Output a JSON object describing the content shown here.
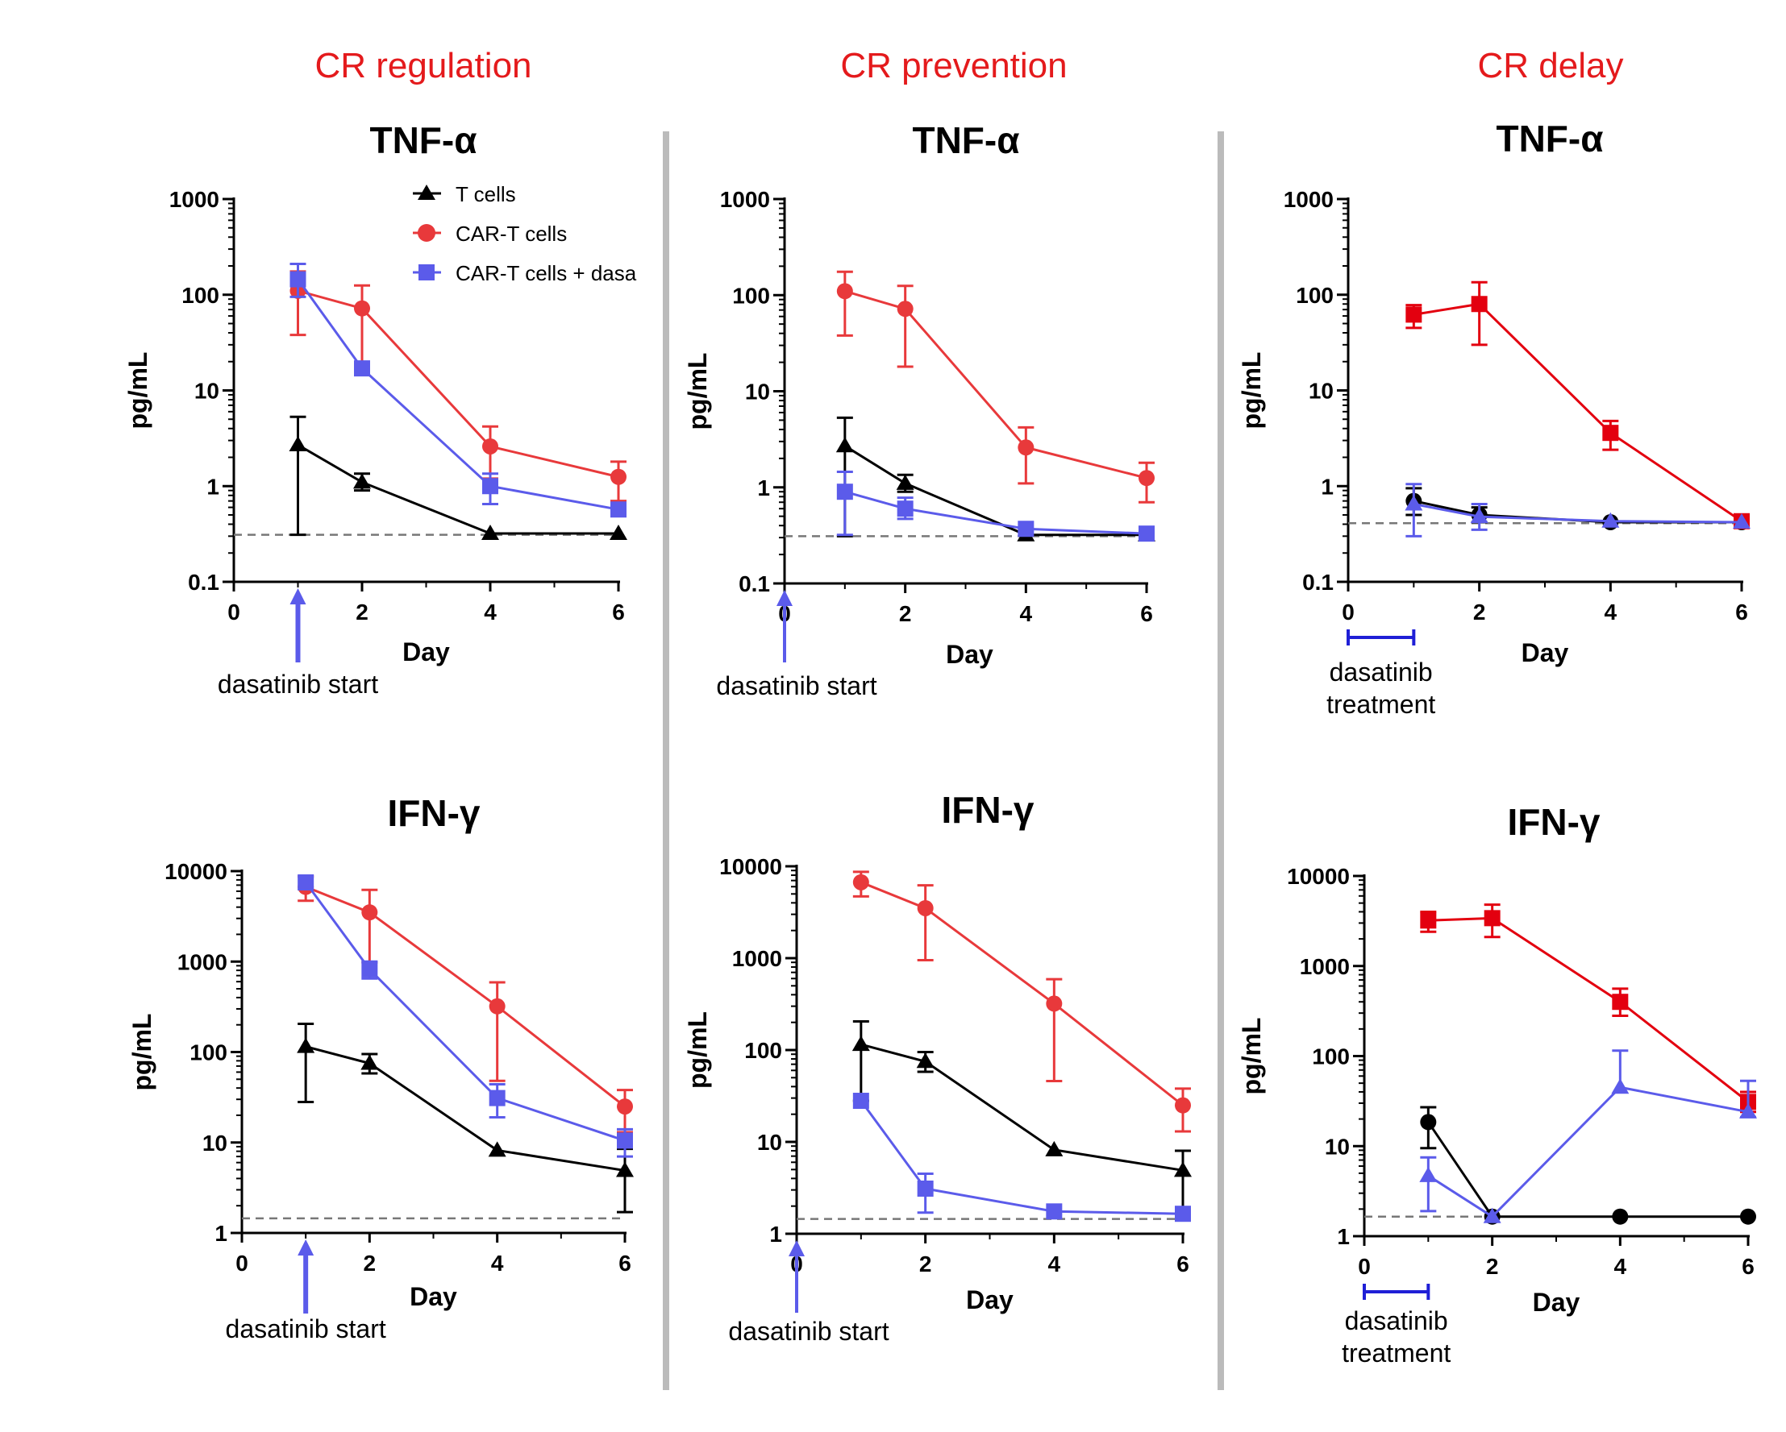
{
  "colors": {
    "tcells": "#000000",
    "car": "#e8393b",
    "dasa": "#5b5bea",
    "delay_red": "#e3000f",
    "divider": "#bbbbbb",
    "dashed": "#777777",
    "treatment_bar": "#1f1fd6"
  },
  "section_titles": [
    "CR regulation",
    "CR prevention",
    "CR delay"
  ],
  "legend": {
    "items": [
      "T cells",
      "CAR-T cells",
      "CAR-T cells + dasa"
    ]
  },
  "chart_data": [
    {
      "id": "regulation-tnf",
      "type": "line",
      "title": "TNF-α",
      "xlabel": "Day",
      "ylabel": "pg/mL",
      "yscale": "log",
      "ylim": [
        0.1,
        1000
      ],
      "yticks": [
        "0.1",
        "1",
        "10",
        "100",
        "1000"
      ],
      "xlim": [
        0,
        6
      ],
      "xticks": [
        "0",
        "2",
        "4",
        "6"
      ],
      "baseline": 0.31,
      "annotation": {
        "kind": "arrow",
        "at": 1,
        "lines": [
          "dasatinib start"
        ]
      },
      "series": [
        {
          "name": "T cells",
          "marker": "triangle",
          "color": "#000000",
          "points": [
            {
              "x": 1,
              "y": 2.7,
              "lo": 0.31,
              "hi": 5.3
            },
            {
              "x": 2,
              "y": 1.1,
              "lo": 0.9,
              "hi": 1.35
            },
            {
              "x": 4,
              "y": 0.32
            },
            {
              "x": 6,
              "y": 0.32
            }
          ]
        },
        {
          "name": "CAR-T cells",
          "marker": "circle",
          "color": "#e8393b",
          "points": [
            {
              "x": 1,
              "y": 110,
              "lo": 38,
              "hi": 175
            },
            {
              "x": 2,
              "y": 72,
              "lo": 18,
              "hi": 125
            },
            {
              "x": 4,
              "y": 2.6,
              "lo": 1.2,
              "hi": 4.2
            },
            {
              "x": 6,
              "y": 1.25,
              "lo": 0.7,
              "hi": 1.8
            }
          ]
        },
        {
          "name": "CAR-T cells + dasa",
          "marker": "square",
          "color": "#5b5bea",
          "points": [
            {
              "x": 1,
              "y": 145,
              "lo": 95,
              "hi": 210
            },
            {
              "x": 2,
              "y": 17,
              "hi": 19
            },
            {
              "x": 4,
              "y": 1.0,
              "lo": 0.65,
              "hi": 1.35
            },
            {
              "x": 6,
              "y": 0.57,
              "lo": 0.5,
              "hi": 0.65
            }
          ]
        }
      ]
    },
    {
      "id": "prevention-tnf",
      "type": "line",
      "title": "TNF-α",
      "xlabel": "Day",
      "ylabel": "pg/mL",
      "yscale": "log",
      "ylim": [
        0.1,
        1000
      ],
      "yticks": [
        "0.1",
        "1",
        "10",
        "100",
        "1000"
      ],
      "xlim": [
        0,
        6
      ],
      "xticks": [
        "0",
        "2",
        "4",
        "6"
      ],
      "baseline": 0.31,
      "annotation": {
        "kind": "arrow",
        "at": 0,
        "lines": [
          "dasatinib start"
        ]
      },
      "series": [
        {
          "name": "T cells",
          "marker": "triangle",
          "color": "#000000",
          "points": [
            {
              "x": 1,
              "y": 2.7,
              "lo": 0.31,
              "hi": 5.3
            },
            {
              "x": 2,
              "y": 1.1,
              "lo": 0.9,
              "hi": 1.35
            },
            {
              "x": 4,
              "y": 0.32
            },
            {
              "x": 6,
              "y": 0.32
            }
          ]
        },
        {
          "name": "CAR-T cells",
          "marker": "circle",
          "color": "#e8393b",
          "points": [
            {
              "x": 1,
              "y": 110,
              "lo": 38,
              "hi": 175
            },
            {
              "x": 2,
              "y": 72,
              "lo": 18,
              "hi": 125
            },
            {
              "x": 4,
              "y": 2.6,
              "lo": 1.1,
              "hi": 4.2
            },
            {
              "x": 6,
              "y": 1.25,
              "lo": 0.7,
              "hi": 1.8
            }
          ]
        },
        {
          "name": "CAR-T cells + dasa",
          "marker": "square",
          "color": "#5b5bea",
          "points": [
            {
              "x": 1,
              "y": 0.9,
              "lo": 0.32,
              "hi": 1.45
            },
            {
              "x": 2,
              "y": 0.6,
              "lo": 0.47,
              "hi": 0.78
            },
            {
              "x": 4,
              "y": 0.37
            },
            {
              "x": 6,
              "y": 0.33
            }
          ]
        }
      ]
    },
    {
      "id": "delay-tnf",
      "type": "line",
      "title": "TNF-α",
      "xlabel": "Day",
      "ylabel": "pg/mL",
      "yscale": "log",
      "ylim": [
        0.1,
        1000
      ],
      "yticks": [
        "0.1",
        "1",
        "10",
        "100",
        "1000"
      ],
      "xlim": [
        0,
        6
      ],
      "xticks": [
        "0",
        "2",
        "4",
        "6"
      ],
      "baseline": 0.41,
      "annotation": {
        "kind": "bar",
        "from": 0,
        "to": 1,
        "lines": [
          "dasatinib",
          "treatment"
        ]
      },
      "series": [
        {
          "name": "T cells",
          "marker": "circle",
          "color": "#000000",
          "points": [
            {
              "x": 1,
              "y": 0.7,
              "lo": 0.5,
              "hi": 0.95
            },
            {
              "x": 2,
              "y": 0.5,
              "lo": 0.42,
              "hi": 0.6
            },
            {
              "x": 4,
              "y": 0.42
            },
            {
              "x": 6,
              "y": 0.42
            }
          ]
        },
        {
          "name": "CAR-T cells",
          "marker": "square",
          "color": "#e3000f",
          "points": [
            {
              "x": 1,
              "y": 62,
              "lo": 45,
              "hi": 78
            },
            {
              "x": 2,
              "y": 80,
              "lo": 30,
              "hi": 135
            },
            {
              "x": 4,
              "y": 3.6,
              "lo": 2.4,
              "hi": 4.8
            },
            {
              "x": 6,
              "y": 0.43
            }
          ]
        },
        {
          "name": "CAR-T cells + dasa",
          "marker": "triangle",
          "color": "#5b5bea",
          "points": [
            {
              "x": 1,
              "y": 0.65,
              "lo": 0.3,
              "hi": 1.05
            },
            {
              "x": 2,
              "y": 0.48,
              "lo": 0.35,
              "hi": 0.65
            },
            {
              "x": 4,
              "y": 0.43
            },
            {
              "x": 6,
              "y": 0.42
            }
          ]
        }
      ]
    },
    {
      "id": "regulation-ifn",
      "type": "line",
      "title": "IFN-γ",
      "xlabel": "Day",
      "ylabel": "pg/mL",
      "yscale": "log",
      "ylim": [
        1,
        10000
      ],
      "yticks": [
        "1",
        "10",
        "100",
        "1000",
        "10000"
      ],
      "xlim": [
        0,
        6
      ],
      "xticks": [
        "0",
        "2",
        "4",
        "6"
      ],
      "baseline": 1.45,
      "annotation": {
        "kind": "arrow",
        "at": 1,
        "lines": [
          "dasatinib start"
        ]
      },
      "series": [
        {
          "name": "T cells",
          "marker": "triangle",
          "color": "#000000",
          "points": [
            {
              "x": 1,
              "y": 115,
              "lo": 28,
              "hi": 205
            },
            {
              "x": 2,
              "y": 75,
              "lo": 58,
              "hi": 95
            },
            {
              "x": 4,
              "y": 8.2
            },
            {
              "x": 6,
              "y": 4.9,
              "lo": 1.7,
              "hi": 8.5
            }
          ]
        },
        {
          "name": "CAR-T cells",
          "marker": "circle",
          "color": "#e8393b",
          "points": [
            {
              "x": 1,
              "y": 6700,
              "lo": 4700,
              "hi": 8700
            },
            {
              "x": 2,
              "y": 3500,
              "lo": 980,
              "hi": 6200
            },
            {
              "x": 4,
              "y": 320,
              "lo": 48,
              "hi": 590
            },
            {
              "x": 6,
              "y": 25,
              "lo": 13,
              "hi": 38
            }
          ]
        },
        {
          "name": "CAR-T cells + dasa",
          "marker": "square",
          "color": "#5b5bea",
          "points": [
            {
              "x": 1,
              "y": 7500
            },
            {
              "x": 2,
              "y": 820,
              "lo": 650,
              "hi": 1000
            },
            {
              "x": 4,
              "y": 31,
              "lo": 19,
              "hi": 44
            },
            {
              "x": 6,
              "y": 10.5,
              "lo": 7,
              "hi": 14
            }
          ]
        }
      ]
    },
    {
      "id": "prevention-ifn",
      "type": "line",
      "title": "IFN-γ",
      "xlabel": "Day",
      "ylabel": "pg/mL",
      "yscale": "log",
      "ylim": [
        1,
        10000
      ],
      "yticks": [
        "1",
        "10",
        "100",
        "1000",
        "10000"
      ],
      "xlim": [
        0,
        6
      ],
      "xticks": [
        "0",
        "2",
        "4",
        "6"
      ],
      "baseline": 1.45,
      "annotation": {
        "kind": "arrow",
        "at": 0,
        "lines": [
          "dasatinib start"
        ]
      },
      "series": [
        {
          "name": "T cells",
          "marker": "triangle",
          "color": "#000000",
          "points": [
            {
              "x": 1,
              "y": 115,
              "lo": 28,
              "hi": 205
            },
            {
              "x": 2,
              "y": 75,
              "lo": 58,
              "hi": 95
            },
            {
              "x": 4,
              "y": 8.2
            },
            {
              "x": 6,
              "y": 4.9,
              "lo": 1.7,
              "hi": 8.0
            }
          ]
        },
        {
          "name": "CAR-T cells",
          "marker": "circle",
          "color": "#e8393b",
          "points": [
            {
              "x": 1,
              "y": 6700,
              "lo": 4700,
              "hi": 8700
            },
            {
              "x": 2,
              "y": 3500,
              "lo": 950,
              "hi": 6200
            },
            {
              "x": 4,
              "y": 320,
              "lo": 46,
              "hi": 590
            },
            {
              "x": 6,
              "y": 25,
              "lo": 13,
              "hi": 38
            }
          ]
        },
        {
          "name": "CAR-T cells + dasa",
          "marker": "square",
          "color": "#5b5bea",
          "points": [
            {
              "x": 1,
              "y": 28
            },
            {
              "x": 2,
              "y": 3.1,
              "lo": 1.7,
              "hi": 4.5
            },
            {
              "x": 4,
              "y": 1.75
            },
            {
              "x": 6,
              "y": 1.65
            }
          ]
        }
      ]
    },
    {
      "id": "delay-ifn",
      "type": "line",
      "title": "IFN-γ",
      "xlabel": "Day",
      "ylabel": "pg/mL",
      "yscale": "log",
      "ylim": [
        1,
        10000
      ],
      "yticks": [
        "1",
        "10",
        "100",
        "1000",
        "10000"
      ],
      "xlim": [
        0,
        6
      ],
      "xticks": [
        "0",
        "2",
        "4",
        "6"
      ],
      "baseline": 1.65,
      "annotation": {
        "kind": "bar",
        "from": 0,
        "to": 1,
        "lines": [
          "dasatinib",
          "treatment"
        ]
      },
      "series": [
        {
          "name": "T cells",
          "marker": "circle",
          "color": "#000000",
          "points": [
            {
              "x": 1,
              "y": 18.5,
              "lo": 9.5,
              "hi": 27
            },
            {
              "x": 2,
              "y": 1.65
            },
            {
              "x": 4,
              "y": 1.65
            },
            {
              "x": 6,
              "y": 1.65
            }
          ]
        },
        {
          "name": "CAR-T cells",
          "marker": "square",
          "color": "#e3000f",
          "points": [
            {
              "x": 1,
              "y": 3200,
              "lo": 2400,
              "hi": 4000
            },
            {
              "x": 2,
              "y": 3400,
              "lo": 2100,
              "hi": 4800
            },
            {
              "x": 4,
              "y": 400,
              "lo": 280,
              "hi": 560
            },
            {
              "x": 6,
              "y": 31,
              "lo": 24,
              "hi": 40
            }
          ]
        },
        {
          "name": "CAR-T cells + dasa",
          "marker": "triangle",
          "color": "#5b5bea",
          "points": [
            {
              "x": 1,
              "y": 4.7,
              "lo": 1.9,
              "hi": 7.5
            },
            {
              "x": 2,
              "y": 1.65
            },
            {
              "x": 4,
              "y": 45,
              "hi": 115
            },
            {
              "x": 6,
              "y": 24,
              "lo": 21,
              "hi": 53
            }
          ]
        }
      ]
    }
  ]
}
